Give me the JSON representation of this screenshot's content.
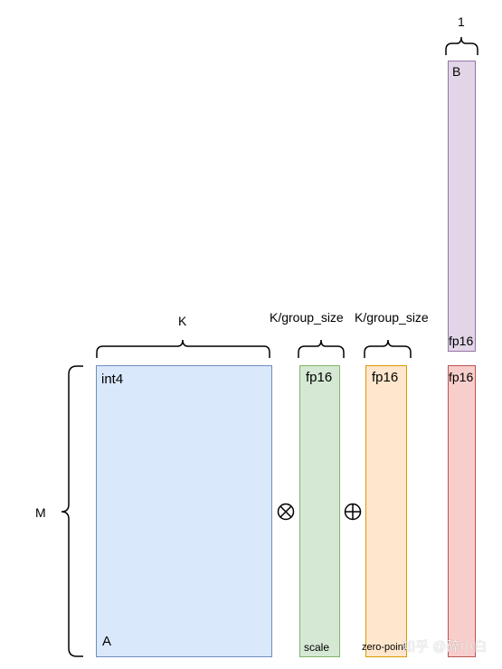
{
  "colors": {
    "matrix_a_fill": "#dae8fc",
    "matrix_a_border": "#6c8ebf",
    "scale_fill": "#d5e8d4",
    "scale_border": "#82b366",
    "zero_point_fill": "#ffe6cc",
    "zero_point_border": "#d79b00",
    "vector_b_fill": "#e1d5e7",
    "vector_b_border": "#9673a6",
    "output_fill": "#f8cecc",
    "output_border": "#b85450",
    "line": "#000000"
  },
  "matrix_a": {
    "dtype": "int4",
    "name": "A"
  },
  "scale": {
    "dtype": "fp16",
    "name": "scale",
    "width_label": "K/group_size"
  },
  "zero_point": {
    "dtype": "fp16",
    "name": "zero-point",
    "width_label": "K/group_size"
  },
  "vector_b": {
    "name": "B",
    "dtype": "fp16",
    "width_label": "1"
  },
  "output": {
    "dtype": "fp16"
  },
  "dimensions": {
    "k_label": "K",
    "m_label": "M"
  },
  "operators": {
    "multiply": "⊗",
    "add": "⊕"
  },
  "icons": {
    "multiply": "circled-times-icon",
    "add": "circled-plus-icon"
  },
  "watermark": {
    "text": "知乎 @碎小白"
  }
}
